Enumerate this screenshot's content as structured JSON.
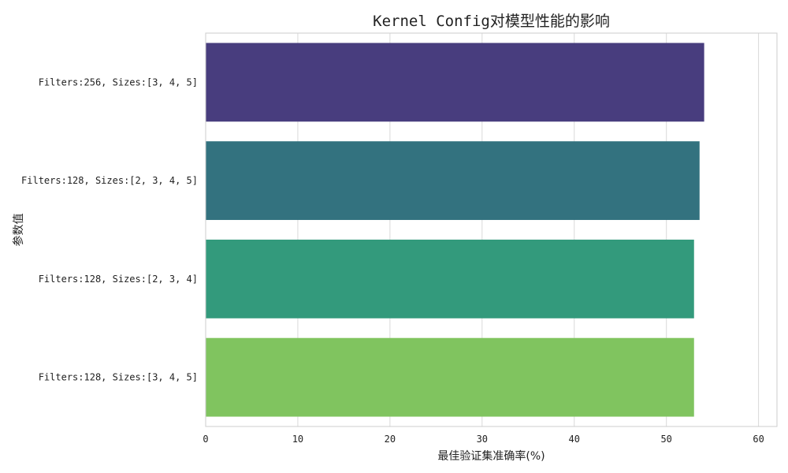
{
  "chart_data": {
    "type": "bar",
    "orientation": "horizontal",
    "title": "Kernel Config对模型性能的影响",
    "xlabel": "最佳验证集准确率(%)",
    "ylabel": "参数值",
    "categories": [
      "Filters:256, Sizes:[3, 4, 5]",
      "Filters:128, Sizes:[2, 3, 4, 5]",
      "Filters:128, Sizes:[2, 3, 4]",
      "Filters:128, Sizes:[3, 4, 5]"
    ],
    "values": [
      54.1,
      53.6,
      53.0,
      53.0
    ],
    "colors": [
      "#483d7e",
      "#33727f",
      "#339a7c",
      "#80c45f"
    ],
    "xlim": [
      0,
      62
    ],
    "xticks": [
      0,
      10,
      20,
      30,
      40,
      50,
      60
    ],
    "grid": true
  }
}
